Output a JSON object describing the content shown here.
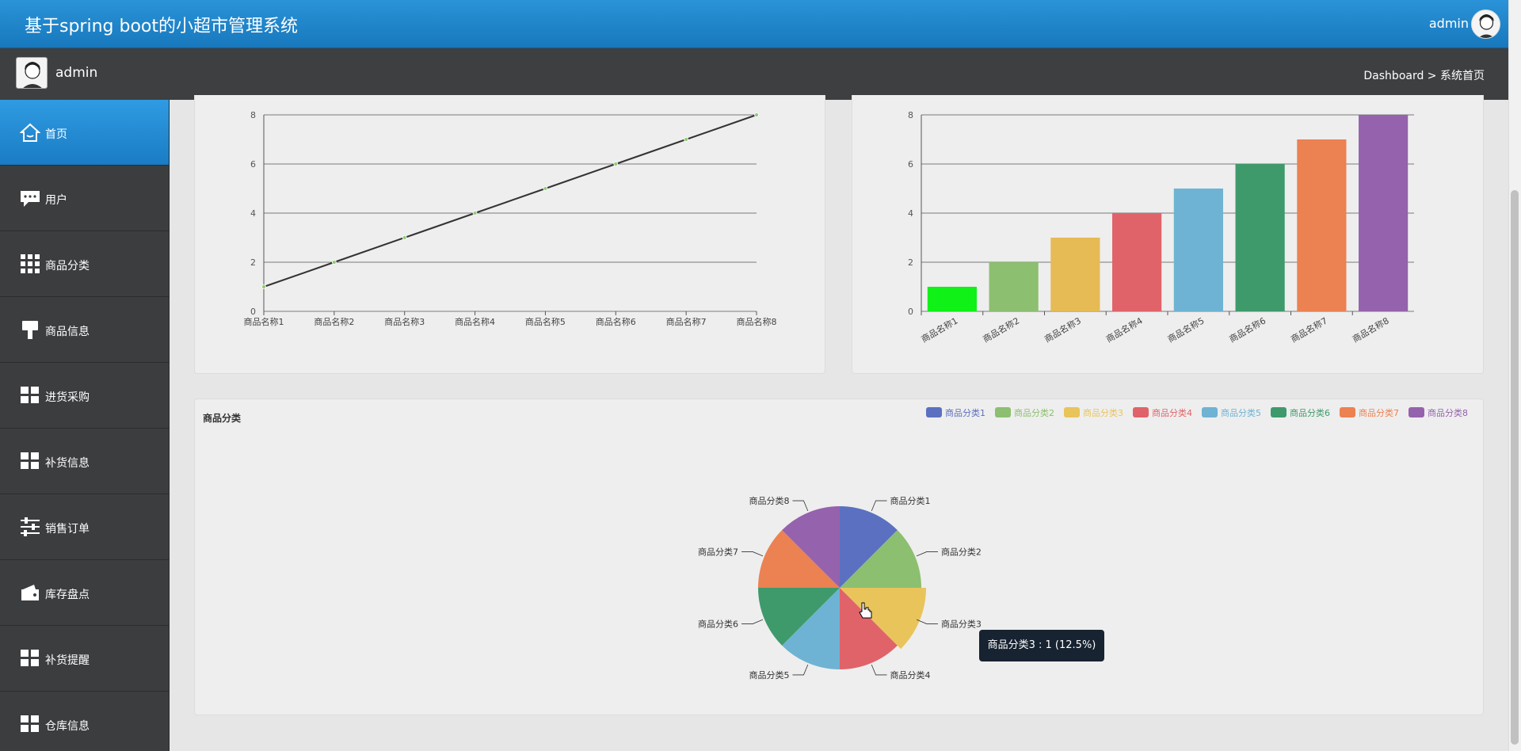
{
  "header": {
    "title": "基于spring boot的小超市管理系统",
    "user": "admin"
  },
  "subheader": {
    "username": "admin",
    "breadcrumb": "Dashboard > 系统首页"
  },
  "sidebar": {
    "items": [
      {
        "label": "首页",
        "icon": "home-icon",
        "active": true
      },
      {
        "label": "用户",
        "icon": "chat-icon"
      },
      {
        "label": "商品分类",
        "icon": "grid-icon"
      },
      {
        "label": "商品信息",
        "icon": "brush-icon"
      },
      {
        "label": "进货采购",
        "icon": "tiles-icon"
      },
      {
        "label": "补货信息",
        "icon": "tiles-icon"
      },
      {
        "label": "销售订单",
        "icon": "sliders-icon"
      },
      {
        "label": "库存盘点",
        "icon": "wallet-icon"
      },
      {
        "label": "补货提醒",
        "icon": "tiles-icon"
      },
      {
        "label": "仓库信息",
        "icon": "tiles-icon"
      }
    ]
  },
  "chart_data": [
    {
      "type": "line",
      "categories": [
        "商品名称1",
        "商品名称2",
        "商品名称3",
        "商品名称4",
        "商品名称5",
        "商品名称6",
        "商品名称7",
        "商品名称8"
      ],
      "values": [
        1,
        2,
        3,
        4,
        5,
        6,
        7,
        8
      ],
      "yticks": [
        "0",
        "2",
        "4",
        "6",
        "8"
      ],
      "ylim": [
        0,
        8
      ],
      "grid": true,
      "colors": {
        "line": "#333333",
        "point": "#91cc75"
      }
    },
    {
      "type": "bar",
      "categories": [
        "商品名称1",
        "商品名称2",
        "商品名称3",
        "商品名称4",
        "商品名称5",
        "商品名称6",
        "商品名称7",
        "商品名称8"
      ],
      "values": [
        1,
        2,
        3,
        4,
        5,
        6,
        7,
        8
      ],
      "yticks": [
        "0",
        "2",
        "4",
        "6",
        "8"
      ],
      "ylim": [
        0,
        8
      ],
      "grid": true,
      "colors": [
        "#0ff117",
        "#8cbf6f",
        "#e6ba55",
        "#e06369",
        "#6eb3d3",
        "#3e9a6b",
        "#ec8152",
        "#9562ae"
      ]
    },
    {
      "type": "pie",
      "title": "商品分类",
      "categories": [
        "商品分类1",
        "商品分类2",
        "商品分类3",
        "商品分类4",
        "商品分类5",
        "商品分类6",
        "商品分类7",
        "商品分类8"
      ],
      "values": [
        1,
        1,
        1,
        1,
        1,
        1,
        1,
        1
      ],
      "legend_position": "top-right",
      "colors": [
        "#5b70c0",
        "#8cbf6f",
        "#e9c45b",
        "#e06369",
        "#6eb3d3",
        "#3e9a6b",
        "#ec8152",
        "#9562ae"
      ]
    }
  ],
  "tooltip": {
    "text": "商品分类3 : 1 (12.5%)"
  }
}
